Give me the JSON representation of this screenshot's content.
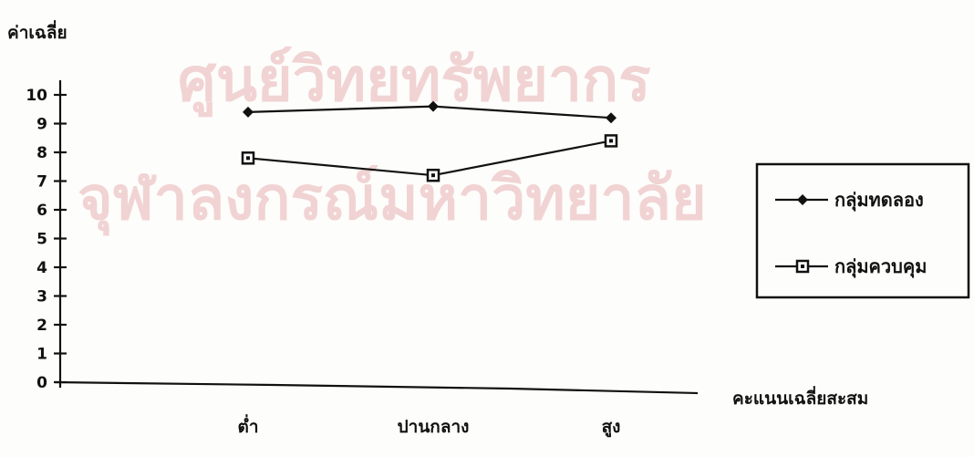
{
  "watermark": {
    "line1": "ศูนย์วิทยทรัพยากร",
    "line2": "จุฬาลงกรณ์มหาวิทยาลัย"
  },
  "chart_data": {
    "type": "line",
    "ylabel": "ค่าเฉลี่ย",
    "xlabel": "คะแนนเฉลี่ยสะสม",
    "categories": [
      "ต่ำ",
      "ปานกลาง",
      "สูง"
    ],
    "ylim": [
      0,
      10
    ],
    "yticks": [
      0,
      1,
      2,
      3,
      4,
      5,
      6,
      7,
      8,
      9,
      10
    ],
    "grid": false,
    "legend": "right",
    "series": [
      {
        "name": "กลุ่มทดลอง",
        "marker": "diamond",
        "values": [
          9.4,
          9.6,
          9.2
        ]
      },
      {
        "name": "กลุ่มควบคุม",
        "marker": "square",
        "values": [
          7.8,
          7.2,
          8.4
        ]
      }
    ]
  }
}
